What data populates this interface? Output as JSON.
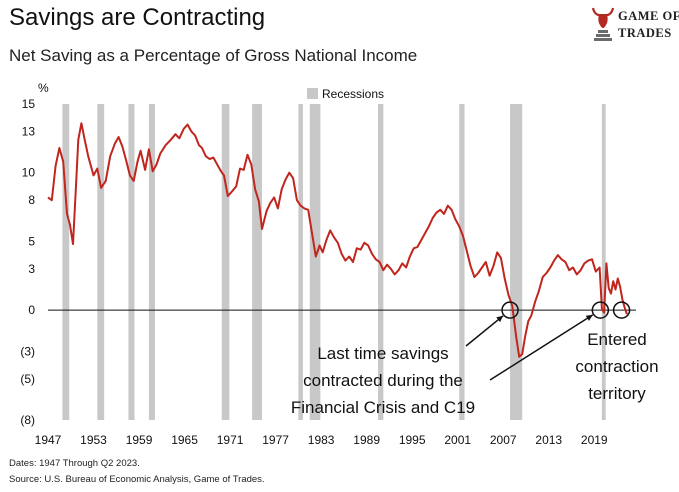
{
  "header": {
    "title": "Savings are Contracting",
    "subtitle": "Net Saving as a Percentage of Gross National Income"
  },
  "logo": {
    "line1": "GAME OF",
    "line2": "TRADES",
    "icon": "bull-icon"
  },
  "footer": {
    "dates": "Dates: 1947 Through Q2 2023.",
    "source": "Source: U.S. Bureau of Economic Analysis, Game of Trades."
  },
  "colors": {
    "line": "#c0261d",
    "recession": "#c8c8c8",
    "axis": "#111111"
  },
  "chart_data": {
    "type": "line",
    "title": "Net Saving as a Percentage of Gross National Income",
    "ylabel": "%",
    "xlabel": "",
    "xlim": [
      1947,
      2024.5
    ],
    "ylim": [
      -8,
      15
    ],
    "y_ticks": [
      15,
      13,
      10,
      8,
      5,
      3,
      0,
      -3,
      -5,
      -8
    ],
    "y_tick_labels": [
      "15",
      "13",
      "10",
      "8",
      "5",
      "3",
      "0",
      "(3)",
      "(5)",
      "(8)"
    ],
    "x_ticks": [
      1947,
      1953,
      1959,
      1965,
      1971,
      1977,
      1983,
      1989,
      1995,
      2001,
      2007,
      2013,
      2019
    ],
    "x_tick_labels": [
      "1947",
      "1953",
      "1959",
      "1965",
      "1971",
      "1977",
      "1983",
      "1989",
      "1995",
      "2001",
      "2007",
      "2013",
      "2019"
    ],
    "legend": [
      {
        "label": "Recessions",
        "position": "top-center"
      }
    ],
    "recessions": [
      [
        1948.9,
        1949.8
      ],
      [
        1953.5,
        1954.4
      ],
      [
        1957.6,
        1958.4
      ],
      [
        1960.3,
        1961.1
      ],
      [
        1969.9,
        1970.9
      ],
      [
        1973.9,
        1975.2
      ],
      [
        1980.0,
        1980.6
      ],
      [
        1981.5,
        1982.9
      ],
      [
        1990.5,
        1991.2
      ],
      [
        2001.2,
        2001.9
      ],
      [
        2007.9,
        2009.5
      ],
      [
        2020.0,
        2020.5
      ]
    ],
    "series": [
      {
        "name": "Net Saving as a Percentage of Gross National Income",
        "x": [
          1947.0,
          1947.5,
          1948.0,
          1948.5,
          1949.0,
          1949.5,
          1949.9,
          1950.3,
          1950.7,
          1951.0,
          1951.4,
          1951.8,
          1952.3,
          1953.0,
          1953.5,
          1954.0,
          1954.6,
          1955.2,
          1955.8,
          1956.3,
          1956.8,
          1957.3,
          1957.8,
          1958.3,
          1958.8,
          1959.2,
          1959.8,
          1960.3,
          1960.8,
          1961.3,
          1961.8,
          1962.5,
          1963.2,
          1963.8,
          1964.3,
          1964.9,
          1965.4,
          1965.9,
          1966.4,
          1966.9,
          1967.3,
          1967.8,
          1968.3,
          1968.8,
          1969.3,
          1969.8,
          1970.2,
          1970.7,
          1971.2,
          1971.8,
          1972.3,
          1972.8,
          1973.3,
          1973.8,
          1974.3,
          1974.8,
          1975.2,
          1975.8,
          1976.3,
          1976.8,
          1977.3,
          1977.8,
          1978.3,
          1978.8,
          1979.3,
          1979.8,
          1980.3,
          1980.8,
          1981.3,
          1981.8,
          1982.3,
          1982.8,
          1983.2,
          1983.7,
          1984.2,
          1984.7,
          1985.2,
          1985.7,
          1986.2,
          1986.7,
          1987.2,
          1987.7,
          1988.2,
          1988.7,
          1989.2,
          1989.7,
          1990.2,
          1990.7,
          1991.2,
          1991.7,
          1992.2,
          1992.7,
          1993.2,
          1993.7,
          1994.2,
          1994.7,
          1995.2,
          1995.7,
          1996.2,
          1996.7,
          1997.2,
          1997.7,
          1998.2,
          1998.7,
          1999.2,
          1999.7,
          2000.2,
          2000.7,
          2001.2,
          2001.7,
          2002.2,
          2002.7,
          2003.2,
          2003.7,
          2004.2,
          2004.7,
          2005.2,
          2005.7,
          2006.2,
          2006.7,
          2007.2,
          2007.7,
          2008.2,
          2008.7,
          2009.1,
          2009.5,
          2009.9,
          2010.3,
          2010.7,
          2011.2,
          2011.7,
          2012.2,
          2012.7,
          2013.2,
          2013.7,
          2014.2,
          2014.7,
          2015.2,
          2015.7,
          2016.2,
          2016.7,
          2017.2,
          2017.7,
          2018.2,
          2018.7,
          2019.2,
          2019.7,
          2020.0,
          2020.3,
          2020.6,
          2020.9,
          2021.2,
          2021.5,
          2021.8,
          2022.1,
          2022.4,
          2022.7,
          2023.0,
          2023.3
        ],
        "y": [
          8.2,
          8.0,
          10.5,
          11.8,
          10.8,
          7.0,
          6.2,
          4.8,
          9.2,
          12.4,
          13.6,
          12.5,
          11.2,
          9.8,
          10.3,
          8.9,
          9.4,
          11.2,
          12.1,
          12.6,
          11.9,
          10.9,
          9.8,
          9.4,
          10.8,
          11.6,
          10.2,
          11.7,
          10.1,
          10.6,
          11.4,
          12.0,
          12.4,
          12.8,
          12.5,
          13.2,
          13.5,
          13.0,
          12.7,
          12.0,
          11.8,
          11.2,
          11.0,
          11.1,
          10.6,
          10.1,
          9.8,
          8.3,
          8.6,
          9.0,
          10.3,
          10.2,
          11.3,
          10.6,
          8.8,
          7.9,
          5.9,
          7.2,
          7.8,
          8.2,
          7.4,
          8.8,
          9.5,
          10.0,
          9.6,
          8.0,
          7.6,
          7.4,
          7.3,
          5.6,
          3.9,
          4.7,
          4.2,
          5.1,
          5.8,
          5.3,
          4.9,
          4.1,
          3.6,
          3.9,
          3.5,
          4.5,
          4.4,
          4.9,
          4.7,
          4.1,
          3.7,
          3.5,
          2.9,
          3.3,
          3.0,
          2.6,
          2.9,
          3.4,
          3.1,
          3.9,
          4.5,
          4.6,
          5.1,
          5.6,
          6.1,
          6.7,
          7.1,
          7.3,
          7.0,
          7.6,
          7.3,
          6.6,
          6.1,
          5.4,
          4.3,
          3.2,
          2.4,
          2.7,
          3.1,
          3.5,
          2.5,
          3.2,
          4.2,
          3.8,
          2.3,
          1.1,
          0.3,
          -1.9,
          -3.4,
          -3.2,
          -1.9,
          -0.8,
          -0.4,
          0.6,
          1.4,
          2.4,
          2.7,
          3.1,
          3.6,
          4.0,
          3.7,
          3.5,
          2.9,
          3.1,
          2.6,
          2.9,
          3.4,
          3.6,
          3.7,
          2.8,
          3.1,
          0.1,
          -0.2,
          3.4,
          1.6,
          1.2,
          2.1,
          1.5,
          2.3,
          1.7,
          0.8,
          0.2,
          -0.3
        ]
      }
    ],
    "annotations": [
      {
        "lines": [
          "Last time savings",
          "contracted during the",
          "Financial Crisis and C19"
        ],
        "targets": [
          [
            2007.9,
            0
          ],
          [
            2019.8,
            0
          ]
        ]
      },
      {
        "lines": [
          "Entered",
          "contraction",
          "territory"
        ],
        "targets": [
          [
            2022.6,
            0
          ]
        ]
      }
    ]
  }
}
